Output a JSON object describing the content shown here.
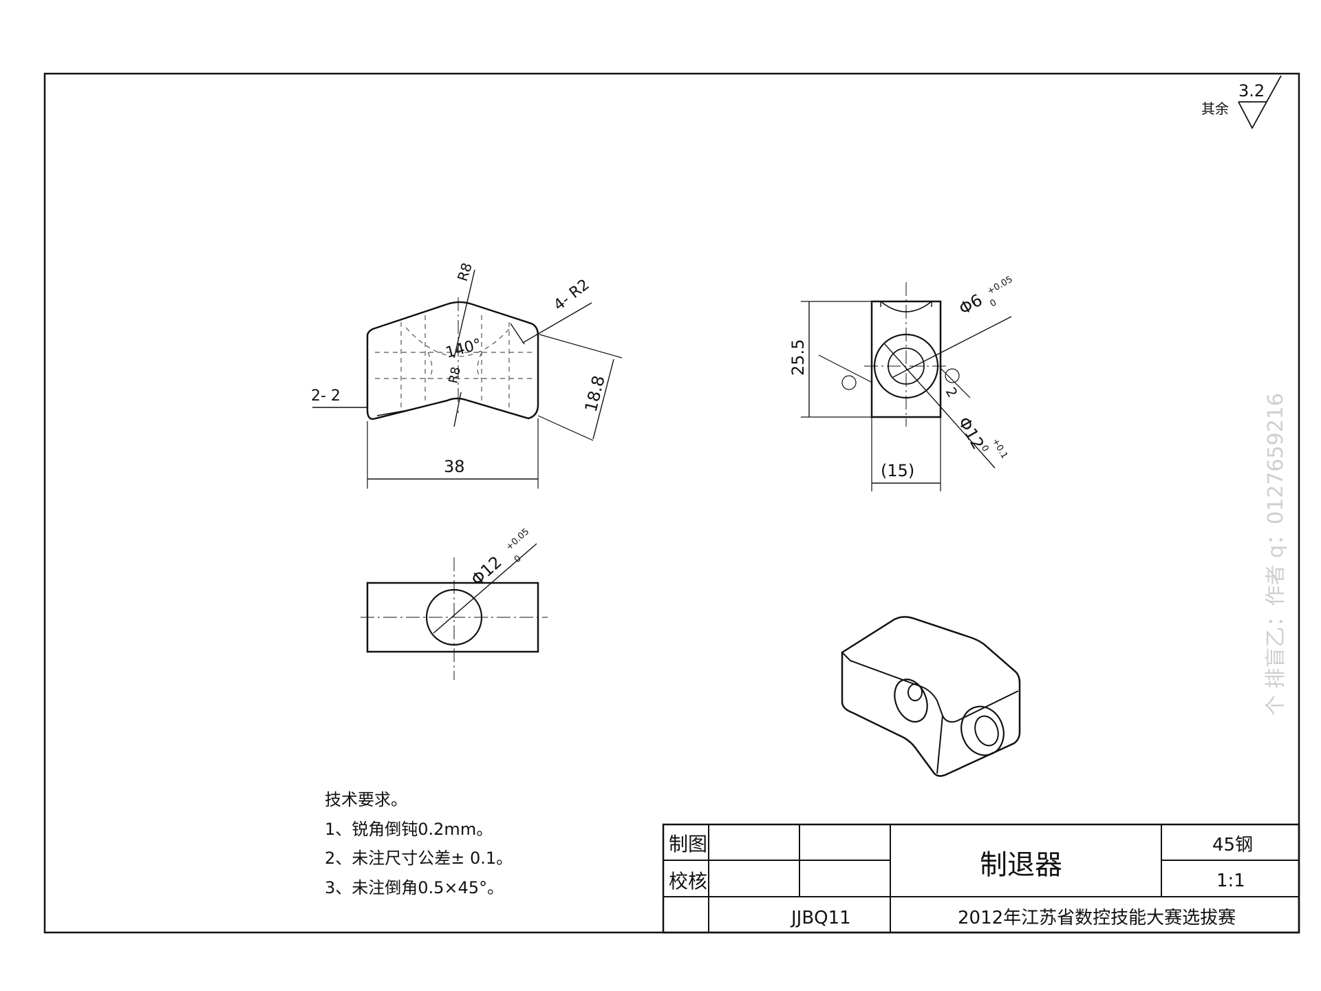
{
  "roughness": {
    "label": "其余",
    "value": "3.2"
  },
  "front_view": {
    "r8_top": "R8",
    "r8_inner": "R8",
    "angle": "140°",
    "corner_radius": "4- R2",
    "chamfer": "2- 2",
    "width": "38",
    "height": "18.8"
  },
  "side_view": {
    "height": "25.5",
    "width": "(15)",
    "hole_small_base": "Φ6",
    "hole_small_tol_upper": "+0.05",
    "hole_small_tol_lower": "0",
    "hole_big_base": "Φ12",
    "hole_big_tol_upper": "+0.1",
    "hole_big_tol_lower": "0",
    "depth": "2"
  },
  "top_view": {
    "hole_base": "Φ12",
    "hole_tol_upper": "+0.05",
    "hole_tol_lower": "0"
  },
  "tech_req": {
    "title": "技术要求。",
    "items": [
      "1、锐角倒钝0.2mm。",
      "2、未注尺寸公差± 0.1。",
      "3、未注倒角0.5×45°。"
    ]
  },
  "title_block": {
    "drawn_label": "制图",
    "checked_label": "校核",
    "part_name": "制退器",
    "material": "45钢",
    "scale": "1:1",
    "drawing_no": "JJBQ11",
    "event": "2012年江苏省数控技能大赛选拔赛"
  },
  "watermark": "个 排盲乙：作者 q：0127659216"
}
